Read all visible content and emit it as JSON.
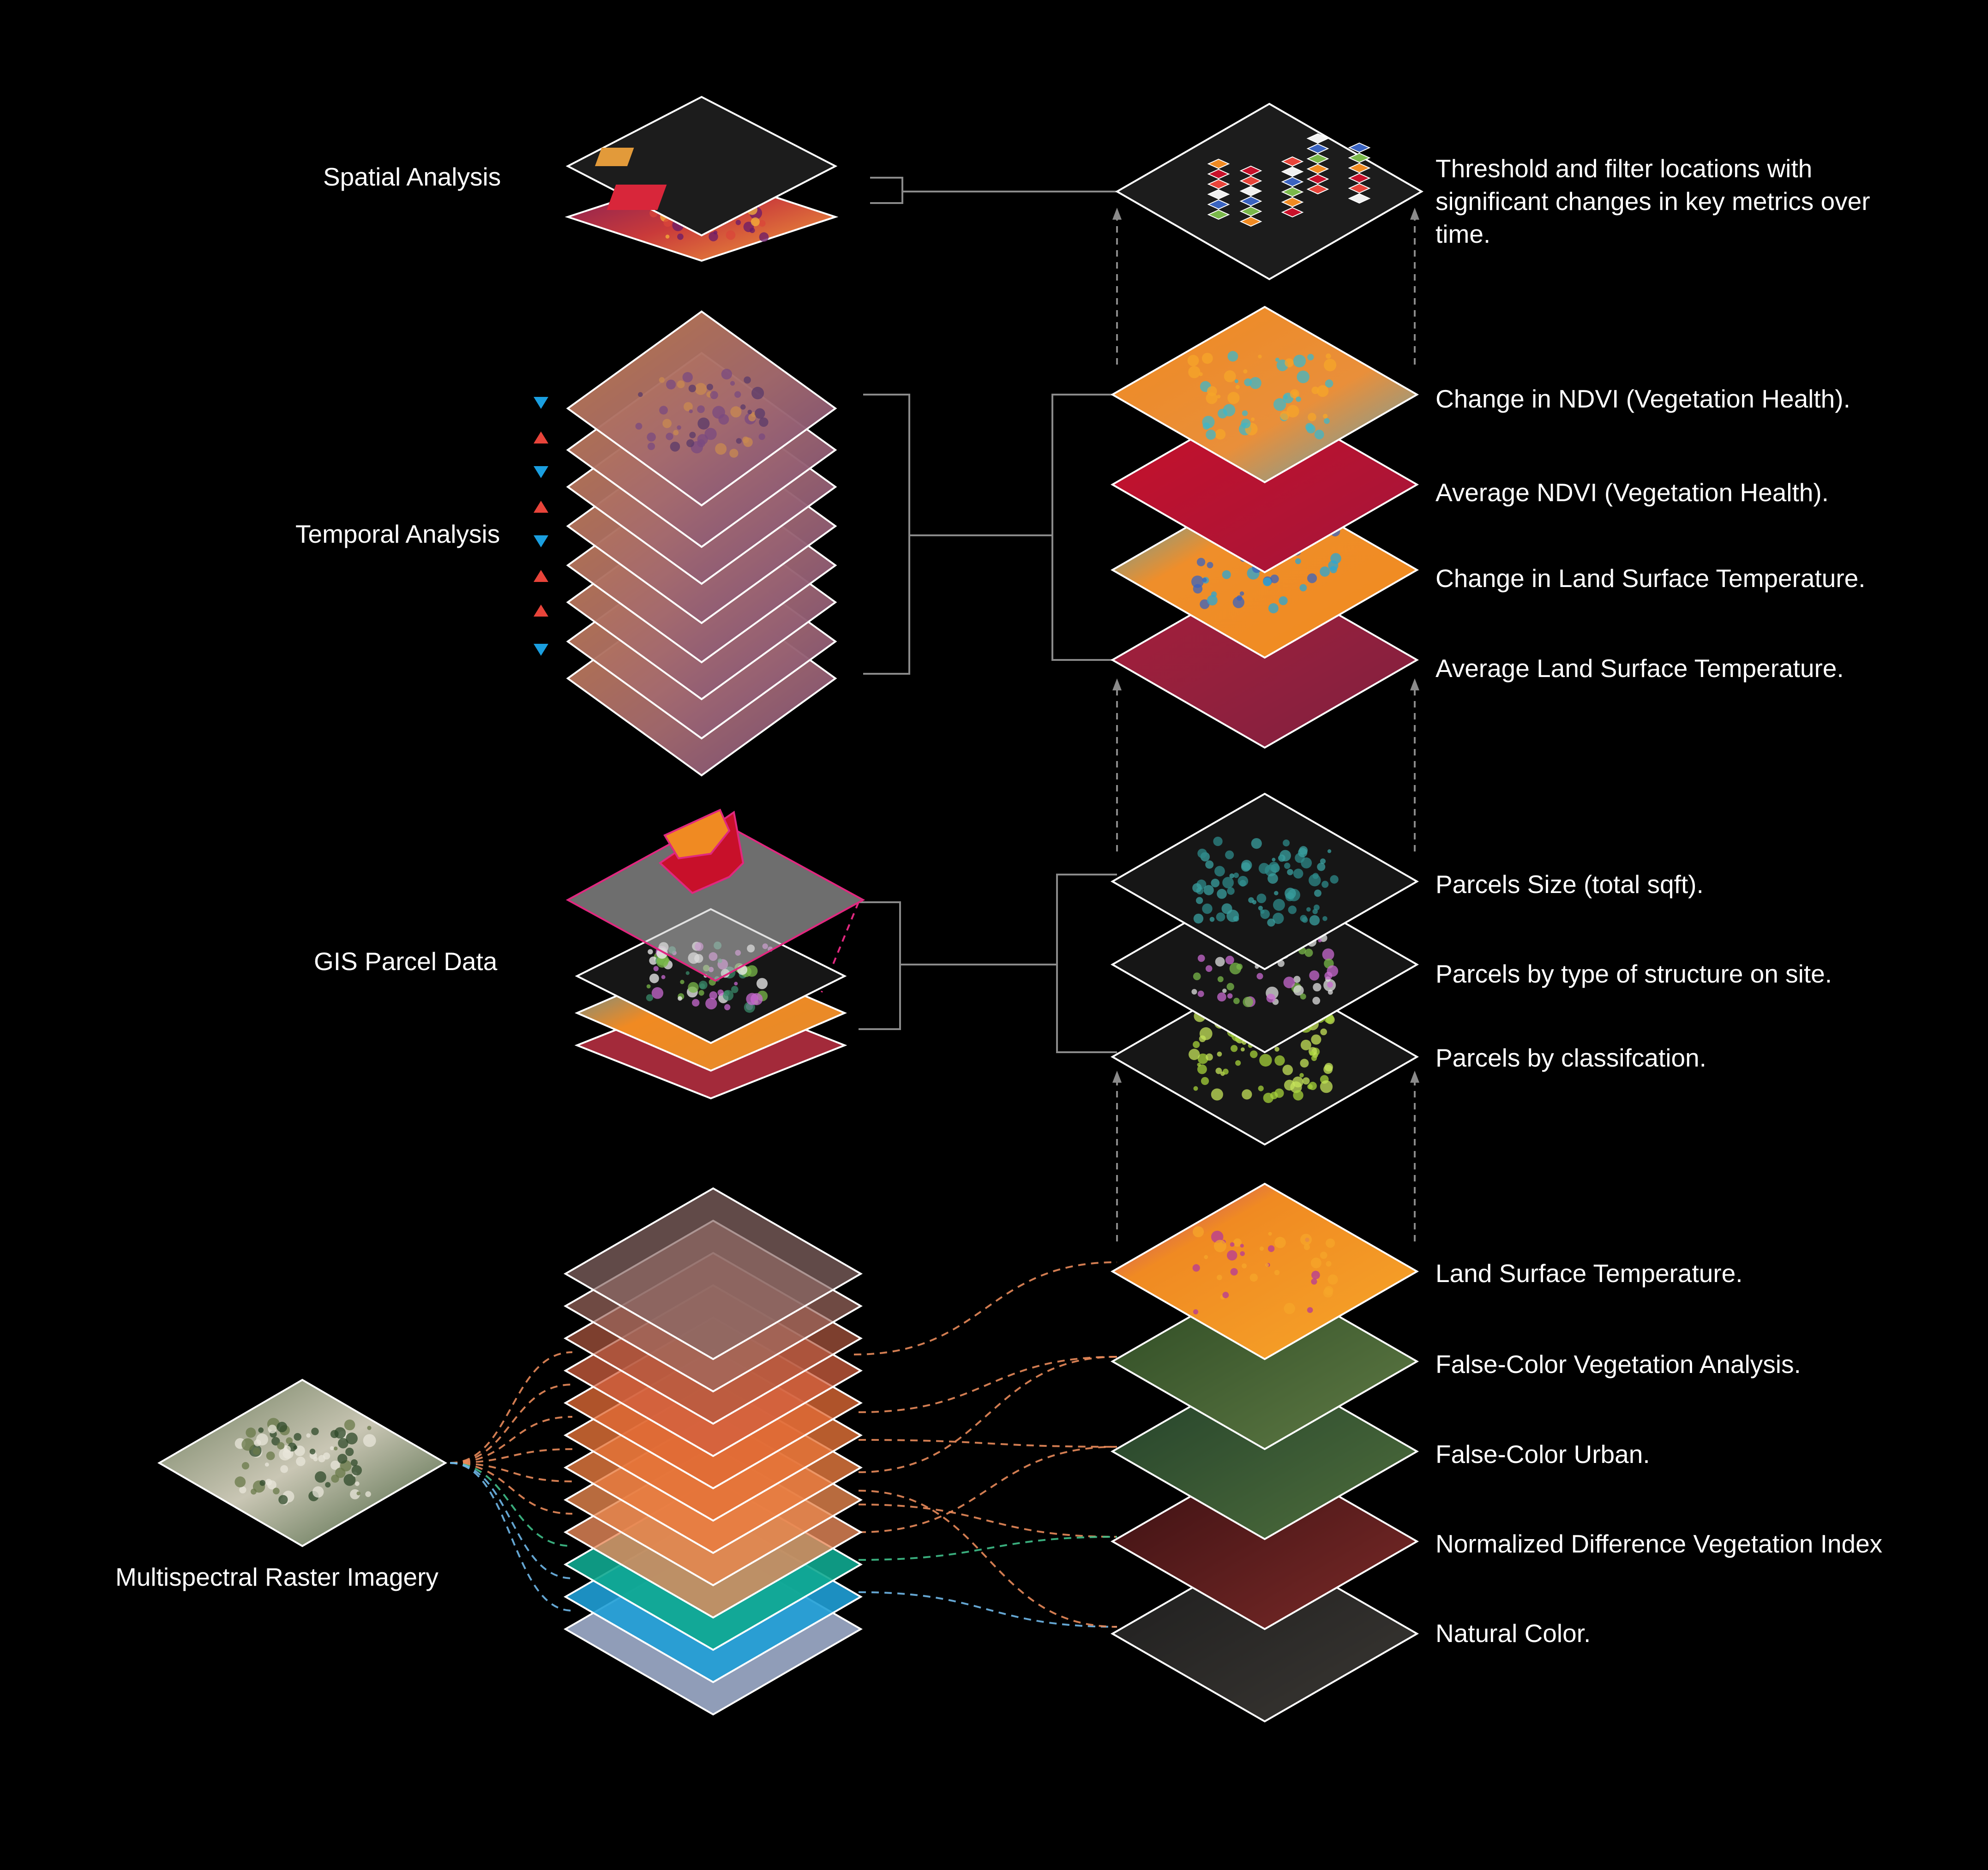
{
  "colors": {
    "background": "#000000",
    "outline": "#ffffff",
    "connector": "#8a8a8a",
    "down_marker": "#1a9fe0",
    "up_marker": "#e8443a",
    "parcel_accent": "#e0287f"
  },
  "left_labels": {
    "spatial": "Spatial Analysis",
    "temporal": "Temporal Analysis",
    "gis": "GIS Parcel Data",
    "multispectral": "Multispectral Raster Imagery"
  },
  "right_labels": {
    "threshold": "Threshold and filter locations with significant changes in key metrics over time.",
    "ndvi_change": "Change in NDVI (Vegetation Health).",
    "ndvi_avg": "Average NDVI (Vegetation Health).",
    "lst_change": "Change in Land Surface Temperature.",
    "lst_avg": "Average Land Surface Temperature.",
    "parcel_size": "Parcels Size (total sqft).",
    "parcel_structure": "Parcels by type of structure on site.",
    "parcel_class": "Parcels by classifcation.",
    "lst": "Land Surface Temperature.",
    "fc_veg": "False-Color Vegetation Analysis.",
    "fc_urban": "False-Color Urban.",
    "ndvi": "Normalized Difference Vegetation Index",
    "natural": "Natural Color."
  },
  "temporal_markers": [
    "down",
    "up",
    "down",
    "up",
    "down",
    "up",
    "up",
    "down"
  ]
}
